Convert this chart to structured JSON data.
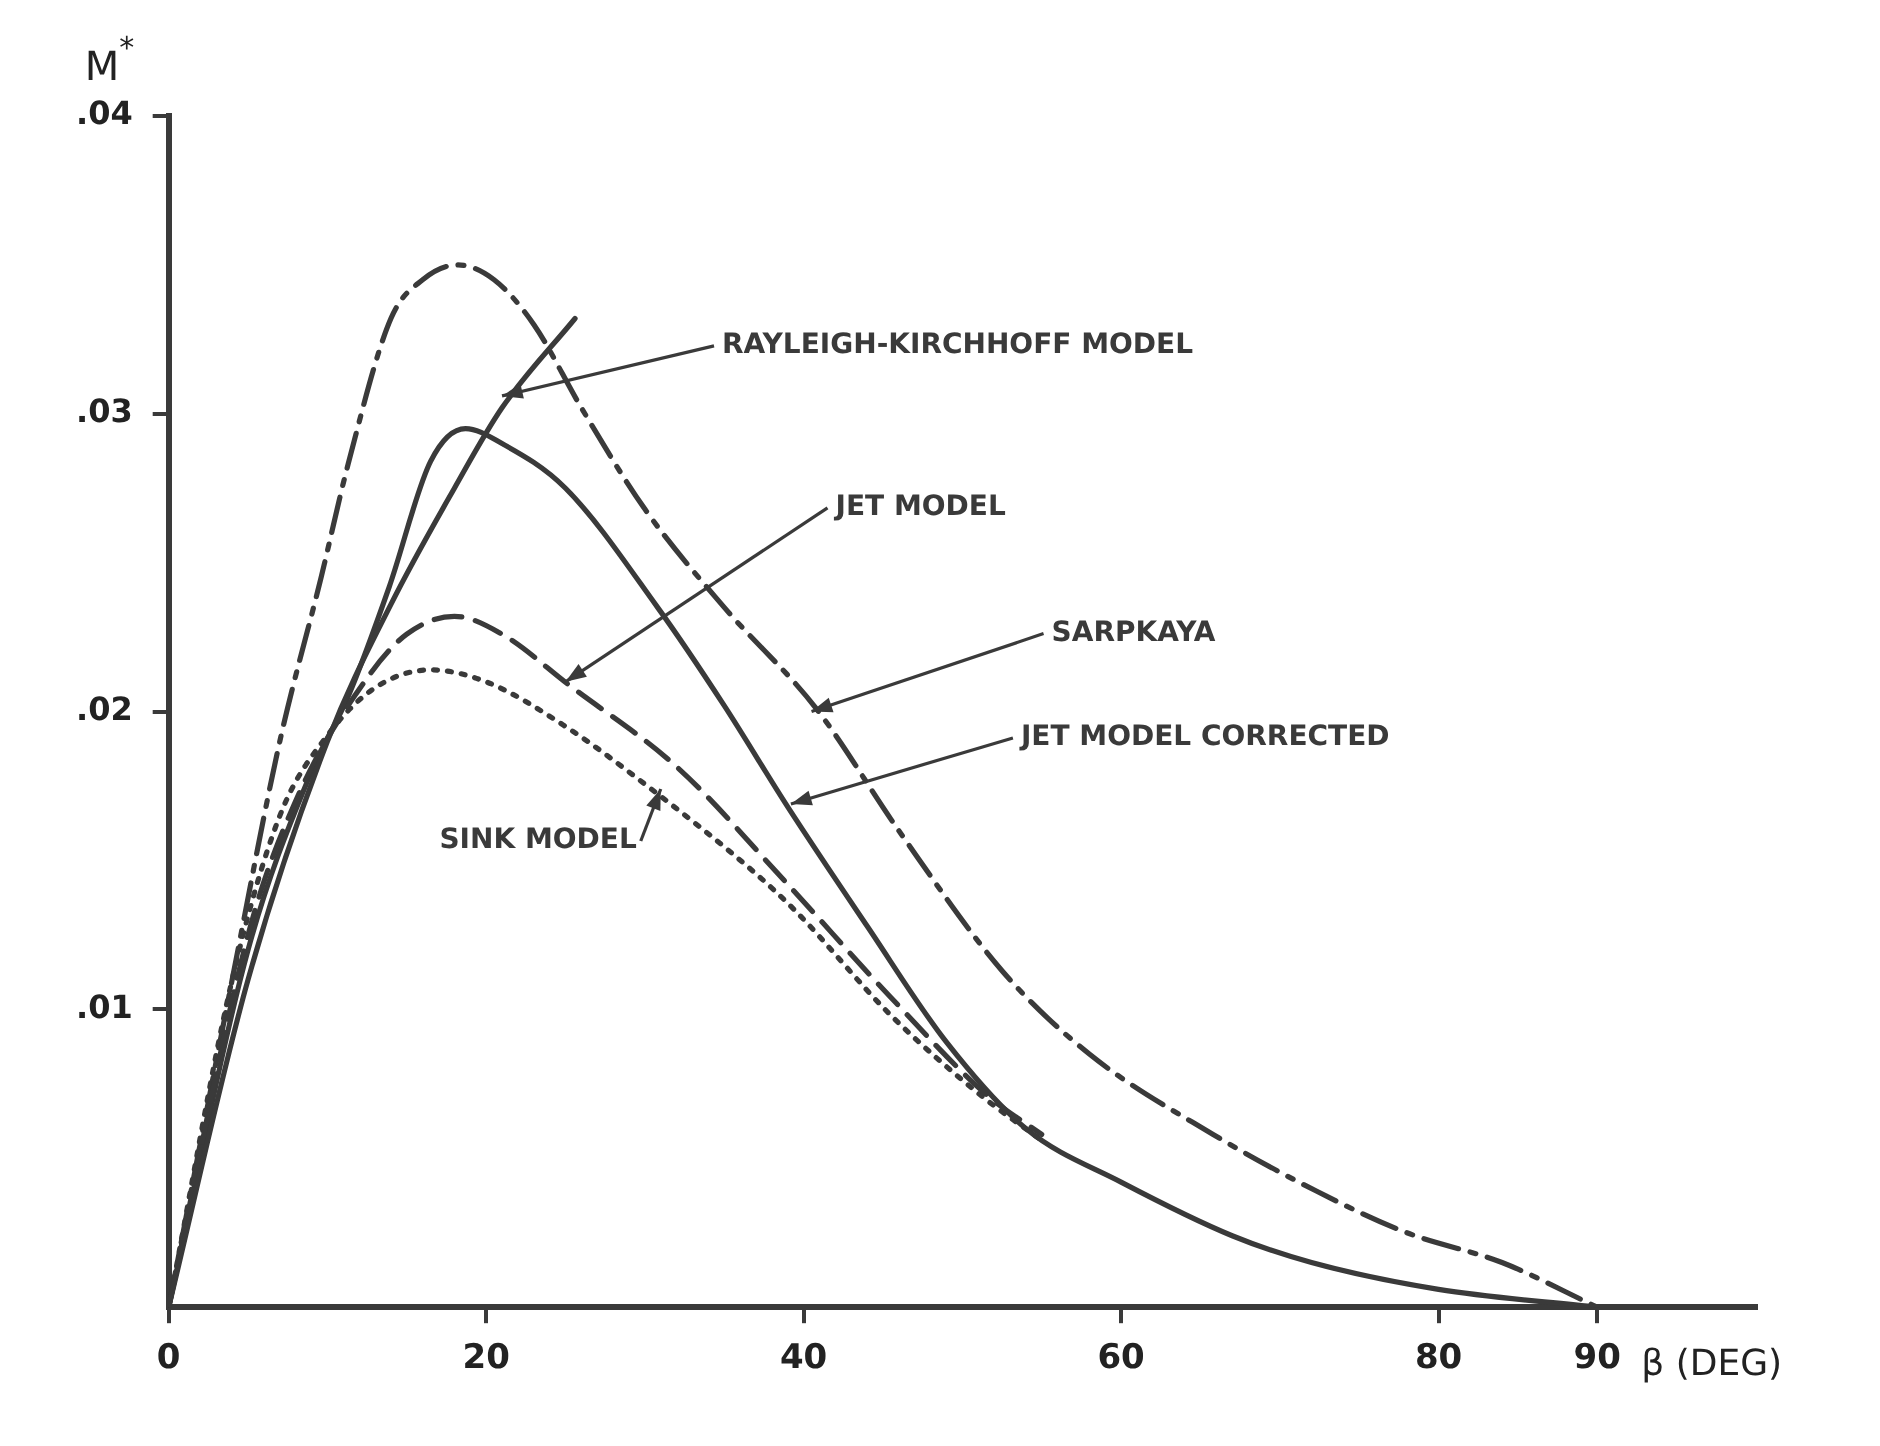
{
  "chart_data": {
    "type": "line",
    "xlabel": "β (DEG)",
    "ylabel": "M$^{*}$",
    "xlim": [
      0,
      100
    ],
    "ylim": [
      0,
      0.04
    ],
    "xticks": [
      0,
      20,
      40,
      60,
      80,
      90
    ],
    "yticks": [
      {
        "value": 0.01,
        "label": ".01"
      },
      {
        "value": 0.02,
        "label": ".02"
      },
      {
        "value": 0.03,
        "label": ".03"
      },
      {
        "value": 0.04,
        "label": ".04"
      }
    ],
    "grid": false,
    "legend": false,
    "marker": "none",
    "series": [
      {
        "color": "#3a3a3a",
        "line_style": "solid",
        "x": [
          0,
          5,
          10,
          14,
          18,
          21,
          25.6
        ],
        "values": [
          0,
          0.011,
          0.019,
          0.0236,
          0.0275,
          0.0302,
          0.0332
        ]
      },
      {
        "color": "#3a3a3a",
        "line_style": "dashed",
        "x": [
          0,
          5,
          8,
          12.6,
          15,
          18,
          21,
          25.2,
          32.1,
          39,
          45.5,
          51.6,
          55
        ],
        "values": [
          0,
          0.0125,
          0.017,
          0.0212,
          0.0226,
          0.0232,
          0.0226,
          0.0209,
          0.0181,
          0.0142,
          0.0104,
          0.0071,
          0.0058
        ]
      },
      {
        "color": "#3a3a3a",
        "line_style": "dashdot",
        "x": [
          0,
          4,
          7,
          9.6,
          11.3,
          14,
          16,
          18.2,
          20.5,
          23,
          26,
          30,
          35,
          40.8,
          46,
          52.5,
          58,
          65.8,
          72.3,
          78,
          84,
          90
        ],
        "values": [
          0,
          0.011,
          0.019,
          0.0245,
          0.0283,
          0.0332,
          0.0345,
          0.035,
          0.0345,
          0.033,
          0.0302,
          0.0268,
          0.0235,
          0.0201,
          0.016,
          0.0113,
          0.0085,
          0.0058,
          0.0039,
          0.0025,
          0.0015,
          0
        ]
      },
      {
        "color": "#3a3a3a",
        "line_style": "solid",
        "x": [
          0,
          5,
          9,
          11.3,
          13.9,
          16.5,
          18.7,
          21,
          25,
          30.8,
          35,
          39,
          44,
          49,
          54,
          60,
          67,
          72,
          80,
          90
        ],
        "values": [
          0,
          0.012,
          0.018,
          0.0205,
          0.0242,
          0.0284,
          0.0295,
          0.029,
          0.0275,
          0.0235,
          0.0202,
          0.0168,
          0.0128,
          0.0089,
          0.006,
          0.0042,
          0.0024,
          0.0015,
          0.0006,
          0
        ]
      },
      {
        "color": "#3a3a3a",
        "line_style": "dotted",
        "x": [
          0,
          4,
          7,
          10,
          13,
          16.5,
          20,
          25,
          30.4,
          36.9,
          39.5,
          45.5,
          51.2,
          55
        ],
        "values": [
          0,
          0.011,
          0.0165,
          0.0192,
          0.0208,
          0.0214,
          0.021,
          0.0195,
          0.0174,
          0.0146,
          0.0133,
          0.0098,
          0.0071,
          0.0056
        ]
      }
    ],
    "annotations": [
      {
        "text": "RAYLEIGH-KIRCHHOFF MODEL",
        "x": 21,
        "y": 0.0306
      },
      {
        "text": "JET MODEL",
        "x": 25,
        "y": 0.021
      },
      {
        "text": "SARPKAYA",
        "x": 40.5,
        "y": 0.02
      },
      {
        "text": "JET MODEL CORRECTED",
        "x": 39.2,
        "y": 0.0169
      },
      {
        "text": "SINK MODEL",
        "x": 31,
        "y": 0.0174
      }
    ]
  }
}
